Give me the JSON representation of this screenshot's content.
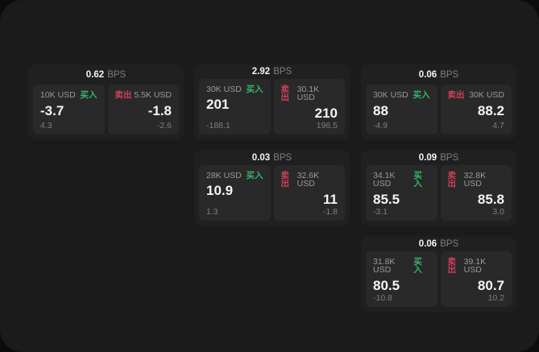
{
  "colors": {
    "outside-bg": "#0c0c0c",
    "page-bg": "#1b1b1b",
    "card-bg": "#202020",
    "panel-bg": "#292929",
    "green": "#35b56a",
    "red": "#cf4059"
  },
  "labels": {
    "buy": "买入",
    "sell": "卖出",
    "bps_unit": "BPS"
  },
  "cards": [
    {
      "spread": "0.62",
      "buy": {
        "amount": "10K USD",
        "price": "-3.7",
        "sub": "4.3"
      },
      "sell": {
        "amount": "5.5K USD",
        "price": "-1.8",
        "sub": "-2.6"
      }
    },
    {
      "spread": "2.92",
      "buy": {
        "amount": "30K USD",
        "price": "201",
        "sub": "-188.1"
      },
      "sell": {
        "amount": "30.1K USD",
        "price": "210",
        "sub": "196.5"
      }
    },
    {
      "spread": "0.06",
      "buy": {
        "amount": "30K USD",
        "price": "88",
        "sub": "-4.9"
      },
      "sell": {
        "amount": "30K USD",
        "price": "88.2",
        "sub": "4.7"
      }
    },
    {
      "spread": "0.03",
      "buy": {
        "amount": "28K USD",
        "price": "10.9",
        "sub": "1.3"
      },
      "sell": {
        "amount": "32.6K USD",
        "price": "11",
        "sub": "-1.8"
      }
    },
    {
      "spread": "0.09",
      "buy": {
        "amount": "34.1K USD",
        "price": "85.5",
        "sub": "-3.1"
      },
      "sell": {
        "amount": "32.8K USD",
        "price": "85.8",
        "sub": "3.0"
      }
    },
    {
      "spread": "0.06",
      "buy": {
        "amount": "31.8K USD",
        "price": "80.5",
        "sub": "-10.8"
      },
      "sell": {
        "amount": "39.1K USD",
        "price": "80.7",
        "sub": "10.2"
      }
    }
  ]
}
